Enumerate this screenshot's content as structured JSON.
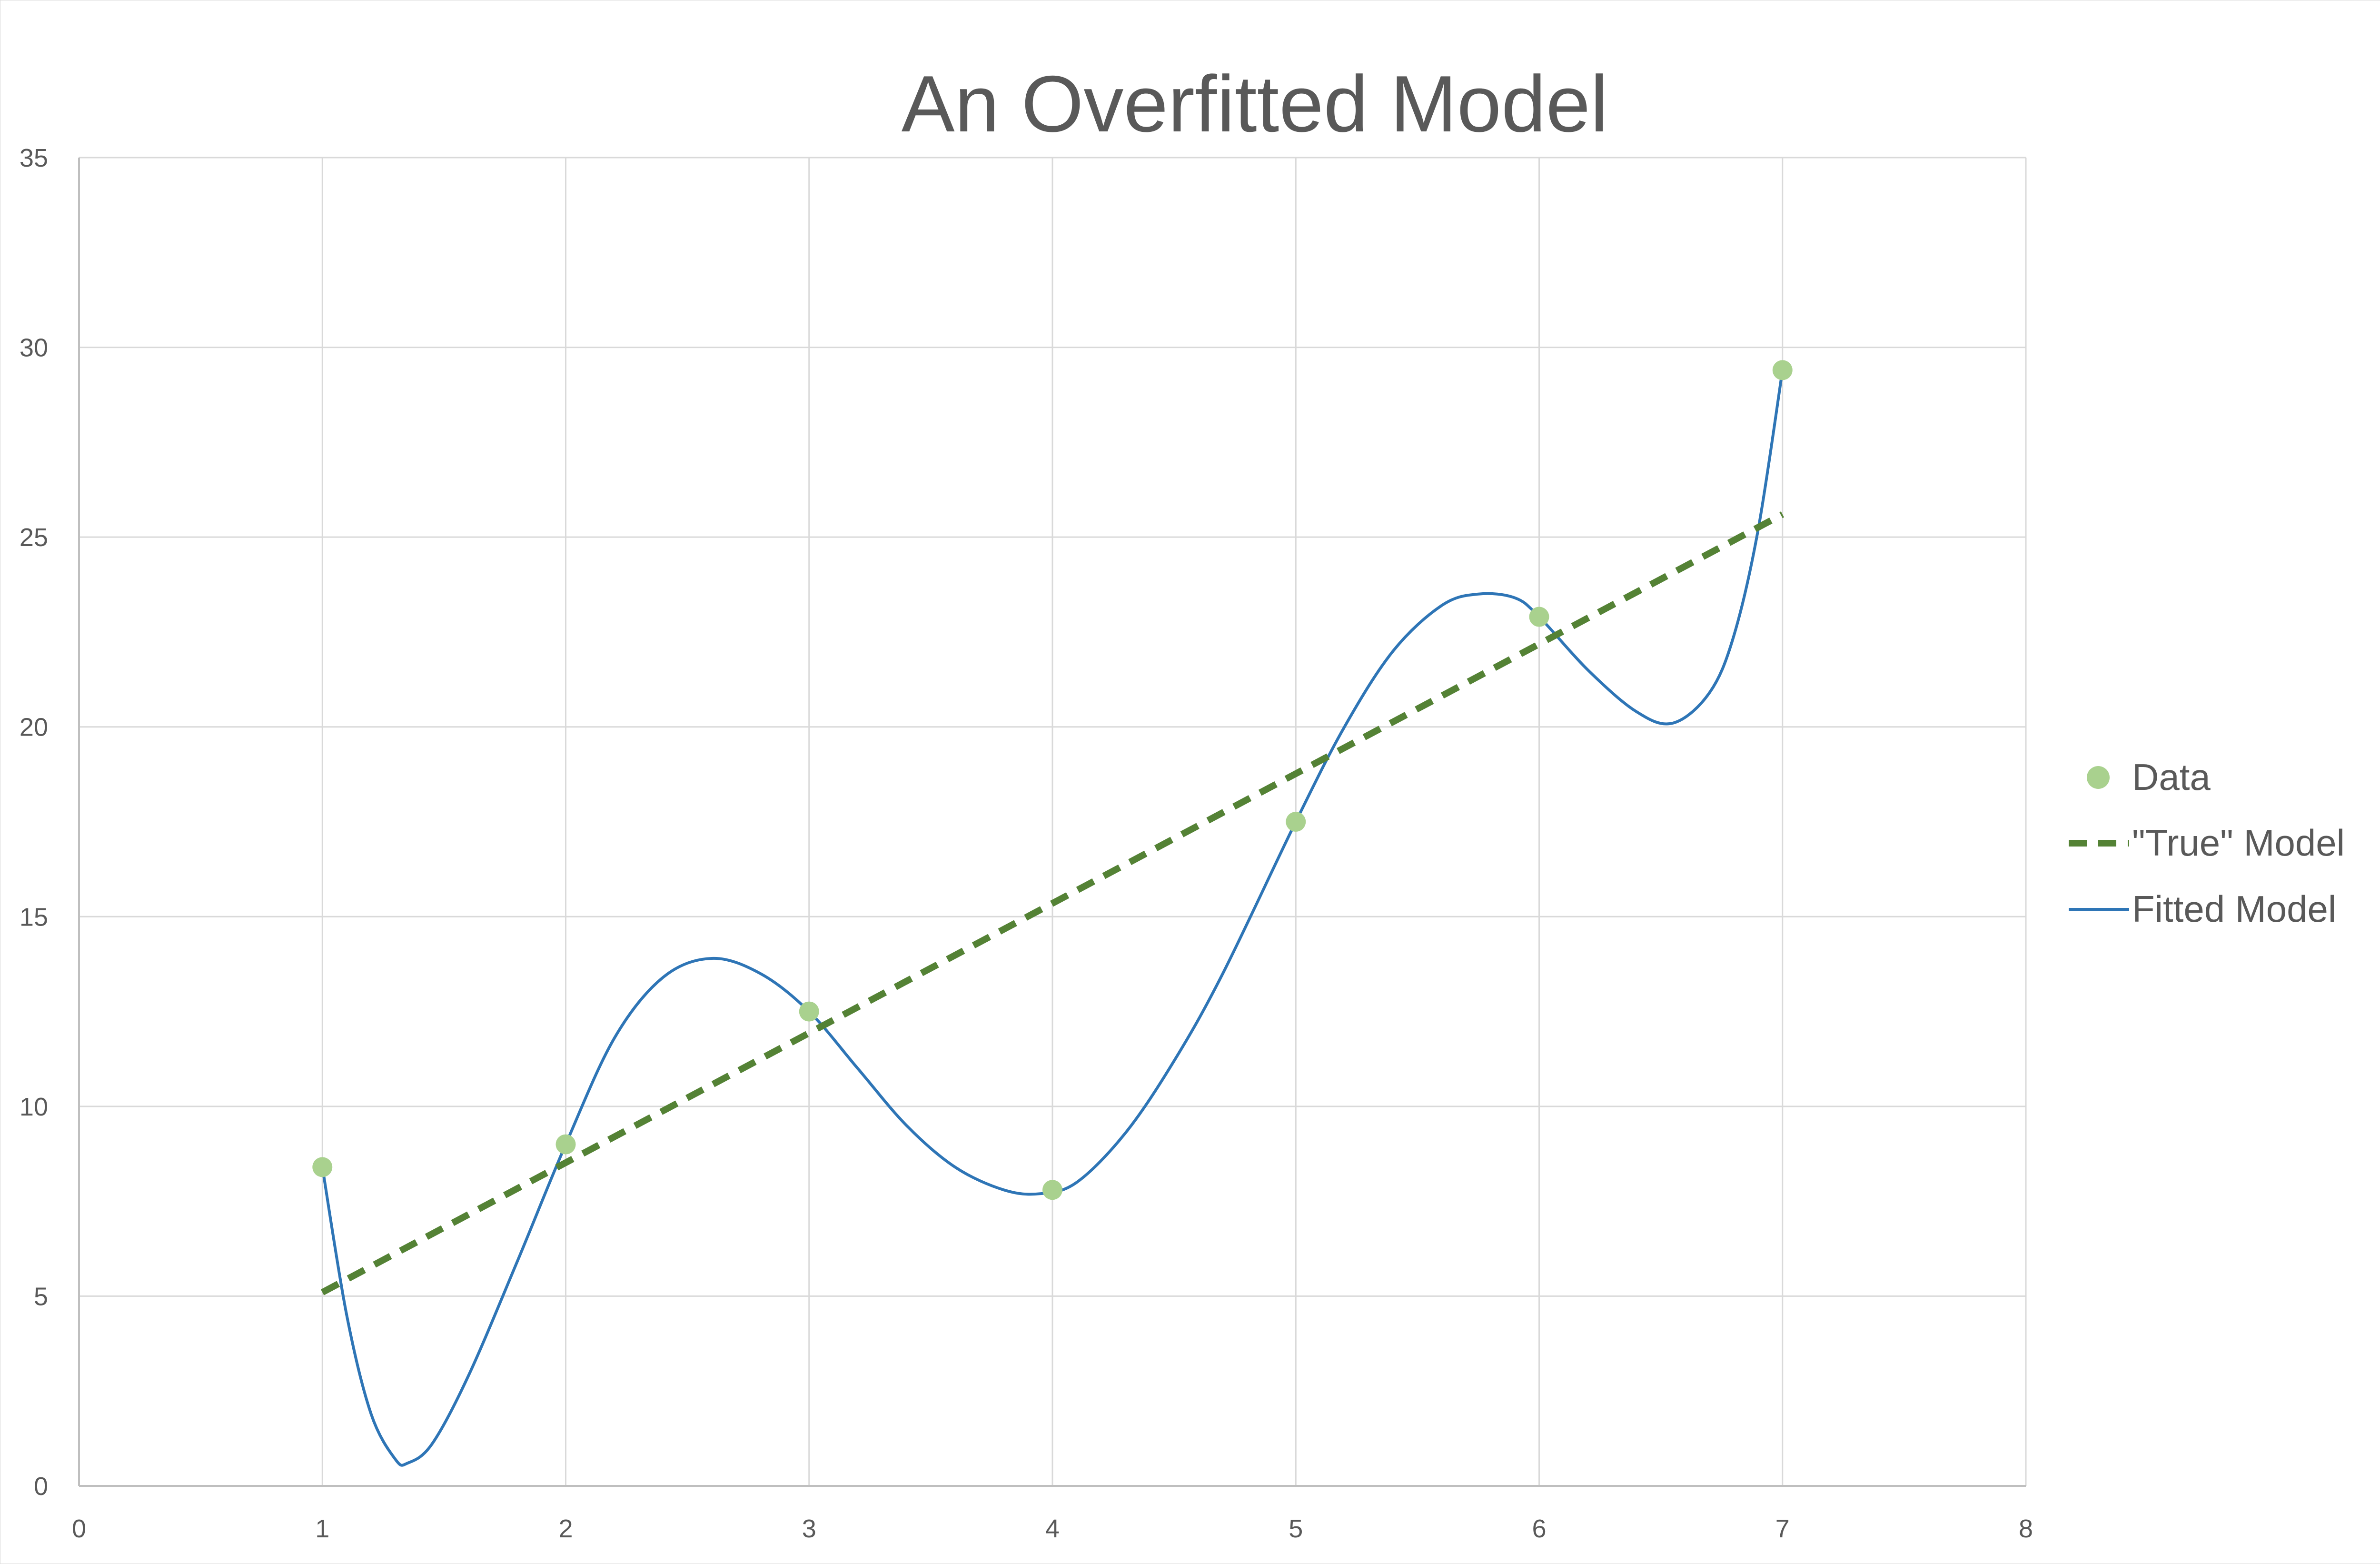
{
  "chart_data": {
    "type": "scatter",
    "title": "An Overfitted Model",
    "xlabel": "",
    "ylabel": "",
    "xlim": [
      0,
      8
    ],
    "ylim": [
      0,
      35
    ],
    "x_ticks": [
      0,
      1,
      2,
      3,
      4,
      5,
      6,
      7,
      8
    ],
    "y_ticks": [
      0,
      5,
      10,
      15,
      20,
      25,
      30,
      35
    ],
    "grid": true,
    "legend_position": "right",
    "series": [
      {
        "name": "Data",
        "kind": "scatter",
        "color": "#a9d18e",
        "x": [
          1,
          2,
          3,
          4,
          5,
          6,
          7
        ],
        "y": [
          8.4,
          9.0,
          12.5,
          7.8,
          17.5,
          22.9,
          29.4
        ]
      },
      {
        "name": "\"True\" Model",
        "kind": "line",
        "style": "dashed",
        "color": "#548235",
        "x": [
          1,
          7
        ],
        "y": [
          5.1,
          25.6
        ]
      },
      {
        "name": "Fitted Model",
        "kind": "line",
        "style": "solid",
        "color": "#2e75b6",
        "x": [
          1,
          1.1,
          1.2,
          1.3,
          1.35,
          1.45,
          1.6,
          1.8,
          2,
          2.2,
          2.4,
          2.6,
          2.8,
          3,
          3.2,
          3.4,
          3.6,
          3.8,
          3.95,
          4.1,
          4.3,
          4.5,
          4.7,
          5,
          5.2,
          5.4,
          5.6,
          5.75,
          5.9,
          6,
          6.2,
          6.4,
          6.55,
          6.7,
          6.8,
          6.9,
          7
        ],
        "y": [
          8.4,
          4.5,
          1.9,
          0.7,
          0.6,
          1.1,
          2.9,
          5.9,
          9.0,
          11.8,
          13.4,
          13.9,
          13.5,
          12.5,
          11.0,
          9.5,
          8.4,
          7.8,
          7.7,
          8.0,
          9.3,
          11.2,
          13.5,
          17.5,
          20.0,
          22.0,
          23.2,
          23.5,
          23.4,
          22.9,
          21.5,
          20.4,
          20.1,
          20.9,
          22.4,
          25.2,
          29.4
        ]
      }
    ]
  }
}
